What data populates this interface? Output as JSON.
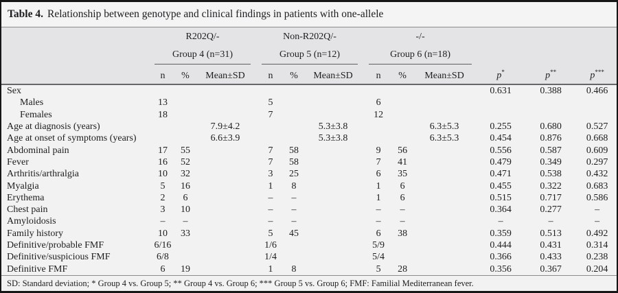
{
  "title": {
    "label": "Table 4.",
    "text": "Relationship between genotype and clinical findings in patients with one-allele"
  },
  "header": {
    "groups": [
      {
        "genotype": "R202Q/-",
        "group": "Group 4 (n=31)"
      },
      {
        "genotype": "Non-R202Q/-",
        "group": "Group 5 (n=12)"
      },
      {
        "genotype": "-/-",
        "group": "Group 6 (n=18)"
      }
    ],
    "subcols": [
      "n",
      "%",
      "Mean±SD"
    ],
    "p_cols": [
      {
        "label": "p",
        "sup": "*"
      },
      {
        "label": "p",
        "sup": "**"
      },
      {
        "label": "p",
        "sup": "***"
      }
    ]
  },
  "rows": [
    {
      "label": "Sex",
      "indent": false,
      "cells": [
        "",
        "",
        "",
        "",
        "",
        "",
        "",
        "",
        "",
        "0.631",
        "0.388",
        "0.466"
      ]
    },
    {
      "label": "Males",
      "indent": true,
      "cells": [
        "13",
        "",
        "",
        "5",
        "",
        "",
        "6",
        "",
        "",
        "",
        "",
        ""
      ]
    },
    {
      "label": "Females",
      "indent": true,
      "cells": [
        "18",
        "",
        "",
        "7",
        "",
        "",
        "12",
        "",
        "",
        "",
        "",
        ""
      ]
    },
    {
      "label": "Age at diagnosis (years)",
      "indent": false,
      "cells": [
        "",
        "",
        "7.9±4.2",
        "",
        "",
        "5.3±3.8",
        "",
        "",
        "6.3±5.3",
        "0.255",
        "0.680",
        "0.527"
      ]
    },
    {
      "label": "Age at onset of symptoms (years)",
      "indent": false,
      "cells": [
        "",
        "",
        "6.6±3.9",
        "",
        "",
        "5.3±3.8",
        "",
        "",
        "6.3±5.3",
        "0.454",
        "0.876",
        "0.668"
      ]
    },
    {
      "label": "Abdominal pain",
      "indent": false,
      "cells": [
        "17",
        "55",
        "",
        "7",
        "58",
        "",
        "9",
        "56",
        "",
        "0.556",
        "0.587",
        "0.609"
      ]
    },
    {
      "label": "Fever",
      "indent": false,
      "cells": [
        "16",
        "52",
        "",
        "7",
        "58",
        "",
        "7",
        "41",
        "",
        "0.479",
        "0.349",
        "0.297"
      ]
    },
    {
      "label": "Arthritis/arthralgia",
      "indent": false,
      "cells": [
        "10",
        "32",
        "",
        "3",
        "25",
        "",
        "6",
        "35",
        "",
        "0.471",
        "0.538",
        "0.432"
      ]
    },
    {
      "label": "Myalgia",
      "indent": false,
      "cells": [
        "5",
        "16",
        "",
        "1",
        "8",
        "",
        "1",
        "6",
        "",
        "0.455",
        "0.322",
        "0.683"
      ]
    },
    {
      "label": "Erythema",
      "indent": false,
      "cells": [
        "2",
        "6",
        "",
        "–",
        "–",
        "",
        "1",
        "6",
        "",
        "0.515",
        "0.717",
        "0.586"
      ]
    },
    {
      "label": "Chest pain",
      "indent": false,
      "cells": [
        "3",
        "10",
        "",
        "–",
        "–",
        "",
        "–",
        "–",
        "",
        "0.364",
        "0.277",
        "–"
      ]
    },
    {
      "label": "Amyloidosis",
      "indent": false,
      "cells": [
        "–",
        "–",
        "",
        "–",
        "–",
        "",
        "–",
        "–",
        "",
        "–",
        "–",
        "–"
      ]
    },
    {
      "label": "Family history",
      "indent": false,
      "cells": [
        "10",
        "33",
        "",
        "5",
        "45",
        "",
        "6",
        "38",
        "",
        "0.359",
        "0.513",
        "0.492"
      ]
    },
    {
      "label": "Definitive/probable FMF",
      "indent": false,
      "cells": [
        "6/16",
        "",
        "",
        "1/6",
        "",
        "",
        "5/9",
        "",
        "",
        "0.444",
        "0.431",
        "0.314"
      ]
    },
    {
      "label": "Definitive/suspicious FMF",
      "indent": false,
      "cells": [
        "6/8",
        "",
        "",
        "1/4",
        "",
        "",
        "5/4",
        "",
        "",
        "0.366",
        "0.433",
        "0.238"
      ]
    },
    {
      "label": "Definitive FMF",
      "indent": false,
      "cells": [
        "6",
        "19",
        "",
        "1",
        "8",
        "",
        "5",
        "28",
        "",
        "0.356",
        "0.367",
        "0.204"
      ]
    }
  ],
  "footer": {
    "text": "SD: Standard deviation; * Group 4 vs. Group 5; ** Group 4 vs. Group 6; *** Group 5 vs. Group 6; FMF: Familial Mediterranean fever."
  },
  "colors": {
    "page_background": "#f2f2f3",
    "header_band": "#e4e4e6",
    "frame_border": "#161616",
    "rule_line": "#66666a",
    "text": "#1d1d1f"
  }
}
